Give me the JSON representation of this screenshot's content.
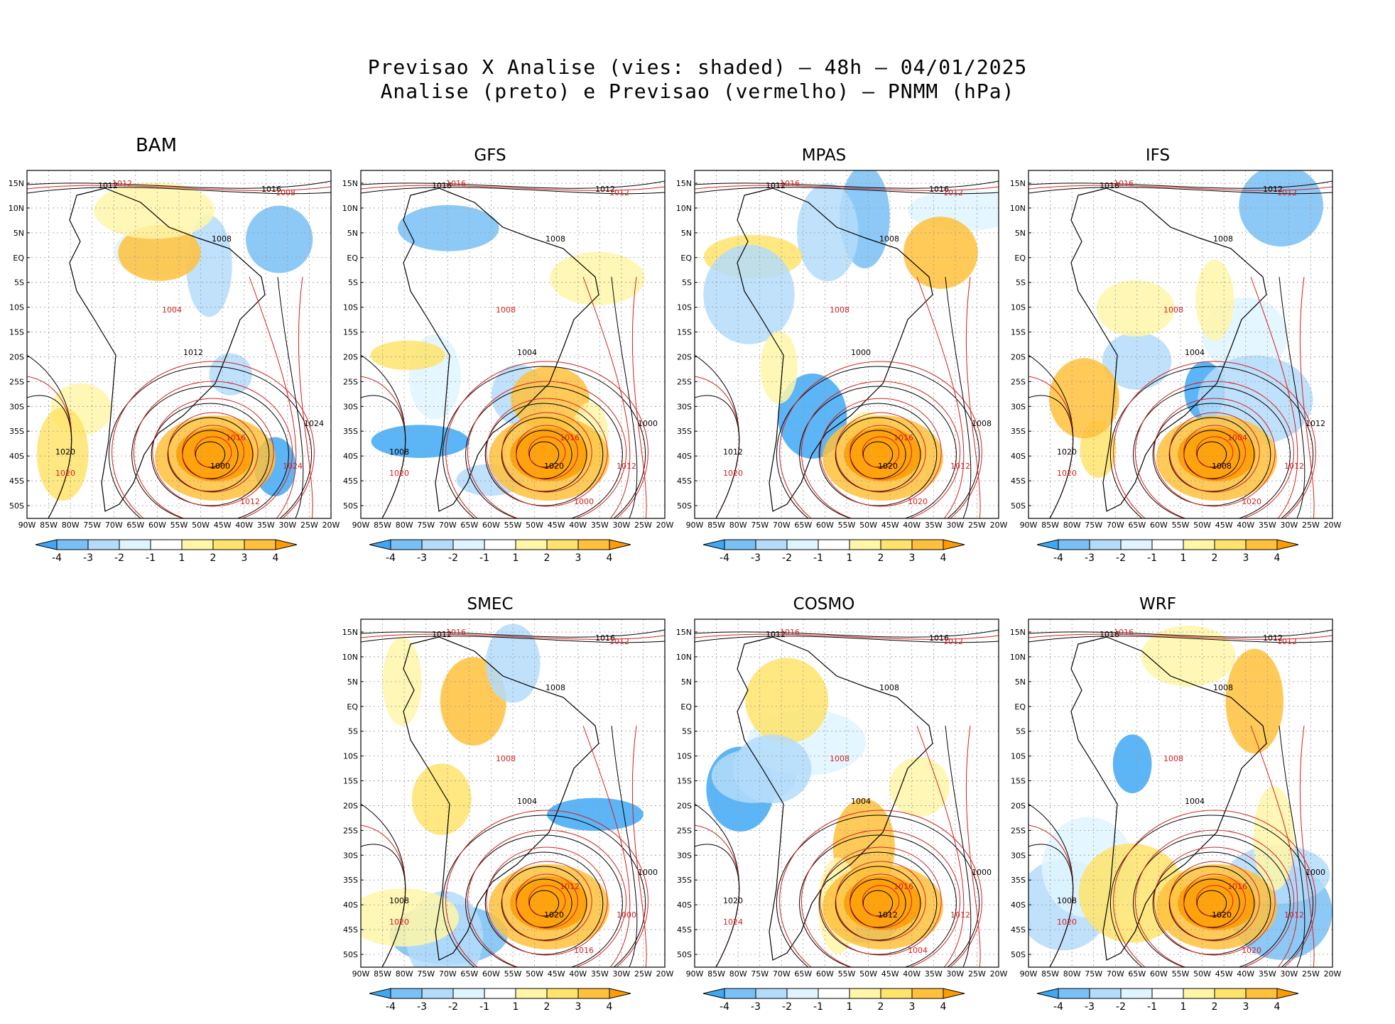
{
  "header": {
    "line1": "Previsao X Analise (vies: shaded) – 48h – 04/01/2025",
    "line2": "Analise (preto) e Previsao (vermelho) – PNMM (hPa)"
  },
  "lat_labels": [
    "15N",
    "10N",
    "5N",
    "EQ",
    "5S",
    "10S",
    "15S",
    "20S",
    "25S",
    "30S",
    "35S",
    "40S",
    "45S",
    "50S"
  ],
  "lon_labels": [
    "90W",
    "85W",
    "80W",
    "75W",
    "70W",
    "65W",
    "60W",
    "55W",
    "50W",
    "45W",
    "40W",
    "35W",
    "30W",
    "25W",
    "20W"
  ],
  "colorbar": {
    "labels": [
      "-4",
      "-3",
      "-2",
      "-1",
      "1",
      "2",
      "3",
      "4"
    ],
    "colors": [
      "#3ea8f4",
      "#79c0f5",
      "#b4dcfa",
      "#dff4ff",
      "#ffffff",
      "#fff6a8",
      "#ffe46b",
      "#ffc13b",
      "#ff9c00"
    ]
  },
  "contour_colors": {
    "analysis": "#000000",
    "forecast": "#d42020"
  },
  "panels": [
    {
      "name": "BAM",
      "iso_black": [
        "1012",
        "1016",
        "1008",
        "1012",
        "1024",
        "1020",
        "1000"
      ],
      "iso_red": [
        "1012",
        "1008",
        "1004",
        "1020",
        "1016",
        "1024",
        "1012"
      ]
    },
    {
      "name": "GFS",
      "iso_black": [
        "1016",
        "1012",
        "1008",
        "1004",
        "1000",
        "1008",
        "1020"
      ],
      "iso_red": [
        "1016",
        "1012",
        "1008",
        "1020",
        "1016",
        "1012",
        "1000"
      ]
    },
    {
      "name": "MPAS",
      "iso_black": [
        "1012",
        "1016",
        "1008",
        "1000",
        "1008",
        "1012",
        "1020"
      ],
      "iso_red": [
        "1016",
        "1012",
        "1008",
        "1020",
        "1016",
        "1012",
        "1020"
      ]
    },
    {
      "name": "IFS",
      "iso_black": [
        "1016",
        "1012",
        "1008",
        "1004",
        "1012",
        "1020",
        "1008"
      ],
      "iso_red": [
        "1016",
        "1012",
        "1008",
        "1020",
        "1004",
        "1012",
        "1020"
      ]
    },
    {
      "name": "SMEC",
      "iso_black": [
        "1012",
        "1016",
        "1008",
        "1004",
        "1000",
        "1008",
        "1020"
      ],
      "iso_red": [
        "1016",
        "1012",
        "1008",
        "1020",
        "1012",
        "1000",
        "1016"
      ]
    },
    {
      "name": "COSMO",
      "iso_black": [
        "1012",
        "1016",
        "1008",
        "1004",
        "1000",
        "1020",
        "1012"
      ],
      "iso_red": [
        "1016",
        "1012",
        "1008",
        "1024",
        "1016",
        "1012",
        "1004"
      ]
    },
    {
      "name": "WRF",
      "iso_black": [
        "1016",
        "1012",
        "1008",
        "1004",
        "1000",
        "1008",
        "1020"
      ],
      "iso_red": [
        "1016",
        "1012",
        "1008",
        "1020",
        "1016",
        "1012",
        "1020"
      ]
    }
  ]
}
